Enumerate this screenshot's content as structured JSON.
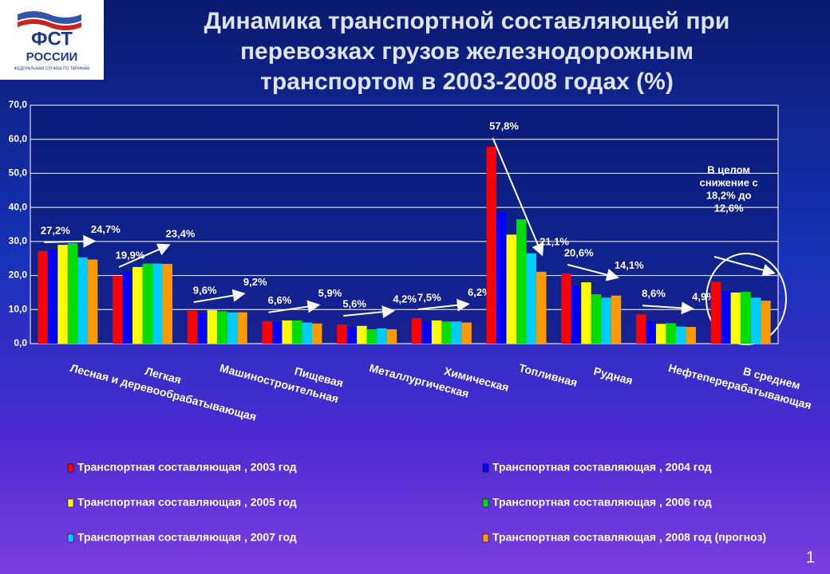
{
  "logo": {
    "name": "ФСТ",
    "country": "РОССИИ",
    "subtitle": "ФЕДЕРАЛЬНАЯ СЛУЖБА ПО ТАРИФАМ"
  },
  "page_number": "1",
  "chart_data": {
    "type": "bar",
    "title": [
      "Динамика транспортной составляющей при",
      "перевозках грузов железнодорожным",
      "транспортом в 2003-2008 годах (%)"
    ],
    "categories": [
      "Лесная и деревообрабатывающая",
      "Легкая",
      "Машиностроительная",
      "Пищевая",
      "Металлургическая",
      "Химическая",
      "Топливная",
      "Рудная",
      "Нефтеперерабатывающая",
      "В среднем"
    ],
    "series": [
      {
        "name": "Транспортная составляющая , 2003 год",
        "color": "#ff0000",
        "values": [
          27.2,
          19.9,
          9.6,
          6.6,
          5.6,
          7.5,
          57.8,
          20.6,
          8.6,
          18.2
        ],
        "value_labels": [
          "27,2%",
          "19,9%",
          "9,6%",
          "6,6%",
          "5,6%",
          "7,5%",
          "57,8%",
          "20,6%",
          "8,6%",
          null
        ]
      },
      {
        "name": "Транспортная составляющая , 2004 год",
        "color": "#0000ff",
        "values": [
          27.5,
          21.0,
          9.0,
          6.3,
          4.8,
          6.5,
          38.5,
          17.0,
          6.5,
          15.5
        ]
      },
      {
        "name": "Транспортная составляющая , 2005 год",
        "color": "#ffff00",
        "values": [
          29.0,
          22.5,
          9.8,
          6.8,
          5.2,
          6.8,
          32.0,
          18.0,
          5.8,
          15.0
        ]
      },
      {
        "name": "Транспортная составляющая , 2006 год",
        "color": "#00dd00",
        "values": [
          29.5,
          23.5,
          9.5,
          6.8,
          4.2,
          6.5,
          36.5,
          14.5,
          6.0,
          15.2
        ]
      },
      {
        "name": "Транспортная составляющая , 2007 год",
        "color": "#00ccff",
        "values": [
          25.3,
          23.5,
          9.2,
          6.2,
          4.5,
          6.5,
          26.5,
          13.5,
          5.0,
          13.5
        ]
      },
      {
        "name": "Транспортная составляющая , 2008 год (прогноз)",
        "color": "#ff9900",
        "values": [
          24.7,
          23.4,
          9.2,
          5.9,
          4.2,
          6.2,
          21.1,
          14.1,
          4.9,
          12.6
        ],
        "value_labels": [
          "24,7%",
          "23,4%",
          "9,2%",
          "5,9%",
          "4,2%",
          "6,2%",
          "21,1%",
          "14,1%",
          "4,9%",
          null
        ]
      }
    ],
    "annotation": [
      "В целом",
      "снижение с",
      "18,2% до",
      "12,6%"
    ],
    "ylim": [
      0,
      70
    ],
    "yticks": [
      {
        "value": 0,
        "label": "0,0"
      },
      {
        "value": 10,
        "label": "10,0"
      },
      {
        "value": 20,
        "label": "20,0"
      },
      {
        "value": 30,
        "label": "30,0"
      },
      {
        "value": 40,
        "label": "40,0"
      },
      {
        "value": 50,
        "label": "50,0"
      },
      {
        "value": 60,
        "label": "60,0"
      },
      {
        "value": 70,
        "label": "70,0"
      }
    ],
    "grid": true
  }
}
